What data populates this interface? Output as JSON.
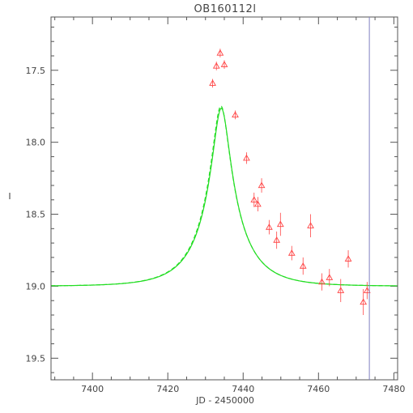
{
  "chart_data": {
    "type": "scatter",
    "title": "OB160112l",
    "xlabel": "JD - 2450000",
    "ylabel": "I",
    "xlim": [
      7389,
      7481
    ],
    "ylim": [
      19.65,
      17.13
    ],
    "y_inverted": true,
    "x_ticks": [
      7400,
      7420,
      7440,
      7460,
      7480
    ],
    "y_ticks": [
      17.5,
      18.0,
      18.5,
      19.0,
      19.5
    ],
    "x_tick_labels": [
      "7400",
      "7420",
      "7440",
      "7460",
      "7480"
    ],
    "y_tick_labels": [
      "17.5",
      "18.0",
      "18.5",
      "19.0",
      "19.5"
    ],
    "vertical_marker_x": 7473.5,
    "colors": {
      "axes": "#555555",
      "data": "#ff4444",
      "model": "#22dd22",
      "marker_line": "#8080c0"
    },
    "series": [
      {
        "kind": "observations",
        "marker": "open-triangle",
        "points": [
          {
            "x": 7431.9,
            "y": 17.59,
            "err": 0.03
          },
          {
            "x": 7432.9,
            "y": 17.47,
            "err": 0.03
          },
          {
            "x": 7433.9,
            "y": 17.38,
            "err": 0.03
          },
          {
            "x": 7435.0,
            "y": 17.46,
            "err": 0.03
          },
          {
            "x": 7437.9,
            "y": 17.81,
            "err": 0.03
          },
          {
            "x": 7440.9,
            "y": 18.11,
            "err": 0.04
          },
          {
            "x": 7442.9,
            "y": 18.4,
            "err": 0.05
          },
          {
            "x": 7443.9,
            "y": 18.43,
            "err": 0.05
          },
          {
            "x": 7444.9,
            "y": 18.3,
            "err": 0.05
          },
          {
            "x": 7446.9,
            "y": 18.59,
            "err": 0.05
          },
          {
            "x": 7448.9,
            "y": 18.68,
            "err": 0.06
          },
          {
            "x": 7449.9,
            "y": 18.57,
            "err": 0.08
          },
          {
            "x": 7452.9,
            "y": 18.77,
            "err": 0.05
          },
          {
            "x": 7455.9,
            "y": 18.86,
            "err": 0.06
          },
          {
            "x": 7457.9,
            "y": 18.58,
            "err": 0.08
          },
          {
            "x": 7460.9,
            "y": 18.97,
            "err": 0.06
          },
          {
            "x": 7462.9,
            "y": 18.94,
            "err": 0.06
          },
          {
            "x": 7465.9,
            "y": 19.03,
            "err": 0.08
          },
          {
            "x": 7467.9,
            "y": 18.81,
            "err": 0.06
          },
          {
            "x": 7471.9,
            "y": 19.11,
            "err": 0.09
          },
          {
            "x": 7472.9,
            "y": 19.03,
            "err": 0.06
          }
        ]
      },
      {
        "kind": "model",
        "style": "solid",
        "t0": 7434.2,
        "tE": 11,
        "u0": 0.19,
        "base": 19.0,
        "fs": 0.49
      },
      {
        "kind": "model",
        "style": "dashed",
        "t0": 7434.1,
        "tE": 11,
        "u0": 0.19,
        "base": 19.0,
        "fs": 0.5
      }
    ]
  }
}
